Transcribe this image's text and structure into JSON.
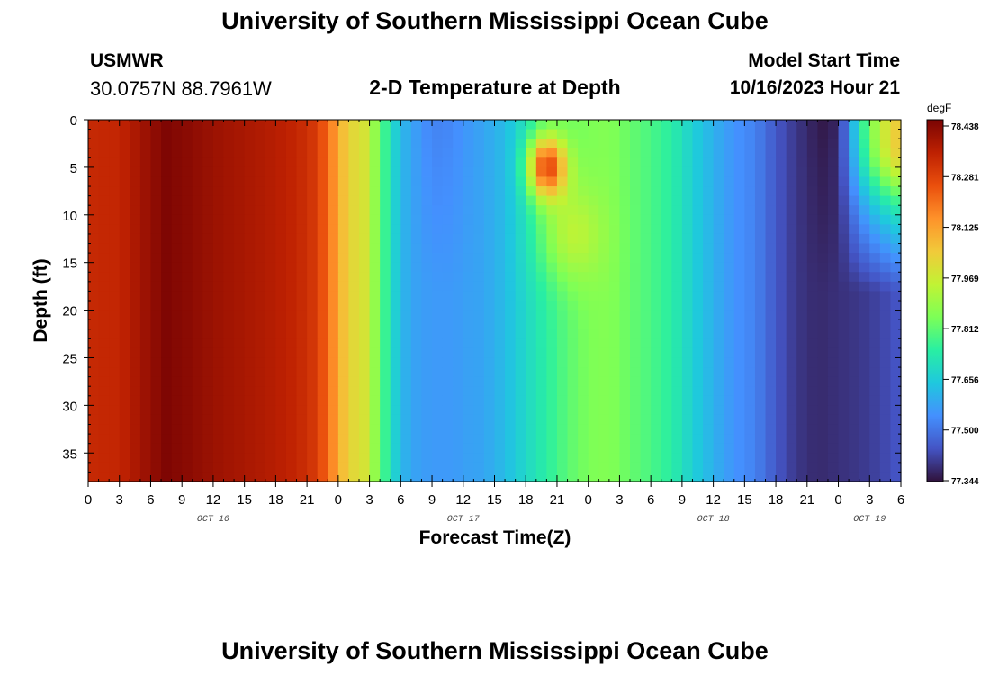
{
  "header": {
    "title": "University of Southern Mississippi Ocean Cube",
    "station": "USMWR",
    "coords": "30.0757N  88.7961W",
    "subtitle": "2-D Temperature at Depth",
    "model_start_label": "Model Start Time",
    "model_start_value": "10/16/2023 Hour 21"
  },
  "footer": {
    "title": "University of Southern Mississippi Ocean Cube"
  },
  "chart_data": {
    "type": "heatmap",
    "title": "2-D Temperature at Depth",
    "xlabel": "Forecast Time(Z)",
    "ylabel": "Depth (ft)",
    "colorbar_unit": "degF",
    "x_range_hours": [
      0,
      78
    ],
    "y_range": [
      0,
      38
    ],
    "y_inverted": true,
    "x_tick_labels": [
      "0",
      "3",
      "6",
      "9",
      "12",
      "15",
      "18",
      "21",
      "0",
      "3",
      "6",
      "9",
      "12",
      "15",
      "18",
      "21",
      "0",
      "3",
      "6",
      "9",
      "12",
      "15",
      "18",
      "21",
      "0",
      "3",
      "6"
    ],
    "date_labels": [
      {
        "label": "OCT 16",
        "hour": 12
      },
      {
        "label": "OCT 17",
        "hour": 36
      },
      {
        "label": "OCT 18",
        "hour": 60
      },
      {
        "label": "OCT 19",
        "hour": 75
      }
    ],
    "y_ticks": [
      0,
      5,
      10,
      15,
      20,
      25,
      30,
      35
    ],
    "colorbar_ticks": [
      "78.438",
      "78.281",
      "78.125",
      "77.969",
      "77.812",
      "77.656",
      "77.500",
      "77.344"
    ],
    "value_range": [
      77.344,
      78.438
    ],
    "colormap": [
      "#30123b",
      "#4454c4",
      "#4490fe",
      "#1fc8de",
      "#29efa2",
      "#7dff56",
      "#c1f334",
      "#f1ca3a",
      "#fe922a",
      "#ea4f0d",
      "#be2102",
      "#7a0403"
    ],
    "surface_profile": [
      [
        0,
        78.32
      ],
      [
        3,
        78.33
      ],
      [
        6,
        78.4
      ],
      [
        7.5,
        78.43
      ],
      [
        10,
        78.41
      ],
      [
        12,
        78.39
      ],
      [
        15,
        78.37
      ],
      [
        18,
        78.35
      ],
      [
        20,
        78.33
      ],
      [
        22,
        78.28
      ],
      [
        23.5,
        78.15
      ],
      [
        24,
        78.1
      ],
      [
        25,
        78.02
      ],
      [
        26.5,
        77.98
      ],
      [
        28,
        77.82
      ],
      [
        29,
        77.7
      ],
      [
        30,
        77.62
      ],
      [
        31,
        77.58
      ],
      [
        33,
        77.52
      ],
      [
        35,
        77.53
      ],
      [
        36,
        77.55
      ],
      [
        38,
        77.58
      ],
      [
        40,
        77.62
      ],
      [
        42,
        77.7
      ],
      [
        44,
        77.78
      ],
      [
        46,
        77.82
      ],
      [
        48,
        77.84
      ],
      [
        50,
        77.85
      ],
      [
        54,
        77.78
      ],
      [
        56,
        77.74
      ],
      [
        58,
        77.66
      ],
      [
        60,
        77.6
      ],
      [
        62,
        77.55
      ],
      [
        64,
        77.52
      ],
      [
        66,
        77.45
      ],
      [
        68,
        77.4
      ],
      [
        70,
        77.36
      ],
      [
        71,
        77.35
      ],
      [
        72,
        77.38
      ],
      [
        74,
        77.7
      ],
      [
        76,
        77.9
      ],
      [
        78,
        78.0
      ]
    ],
    "deep_profile": [
      [
        0,
        78.32
      ],
      [
        3,
        78.33
      ],
      [
        6,
        78.4
      ],
      [
        7.5,
        78.43
      ],
      [
        10,
        78.41
      ],
      [
        12,
        78.39
      ],
      [
        15,
        78.37
      ],
      [
        18,
        78.35
      ],
      [
        20,
        78.33
      ],
      [
        22,
        78.28
      ],
      [
        23.5,
        78.15
      ],
      [
        24,
        78.1
      ],
      [
        25,
        78.02
      ],
      [
        26.5,
        77.98
      ],
      [
        28,
        77.82
      ],
      [
        29,
        77.7
      ],
      [
        30,
        77.62
      ],
      [
        31,
        77.58
      ],
      [
        33,
        77.56
      ],
      [
        35,
        77.56
      ],
      [
        36,
        77.57
      ],
      [
        38,
        77.58
      ],
      [
        40,
        77.62
      ],
      [
        42,
        77.68
      ],
      [
        44,
        77.74
      ],
      [
        46,
        77.8
      ],
      [
        48,
        77.84
      ],
      [
        50,
        77.85
      ],
      [
        54,
        77.78
      ],
      [
        56,
        77.74
      ],
      [
        58,
        77.66
      ],
      [
        60,
        77.6
      ],
      [
        62,
        77.55
      ],
      [
        64,
        77.52
      ],
      [
        66,
        77.45
      ],
      [
        68,
        77.4
      ],
      [
        70,
        77.38
      ],
      [
        72,
        77.39
      ],
      [
        74,
        77.4
      ],
      [
        76,
        77.42
      ],
      [
        78,
        77.45
      ]
    ],
    "warm_anomalies": [
      {
        "hour": 44,
        "depth": 5,
        "amplitude": 0.48,
        "spread_hours": 1.8,
        "spread_depth": 3.2
      },
      {
        "hour": 46,
        "depth": 12,
        "amplitude": 0.12,
        "spread_hours": 3.0,
        "spread_depth": 5.0
      },
      {
        "hour": 78,
        "depth": 4,
        "amplitude": 0.15,
        "spread_hours": 3.5,
        "spread_depth": 4.0
      }
    ]
  }
}
